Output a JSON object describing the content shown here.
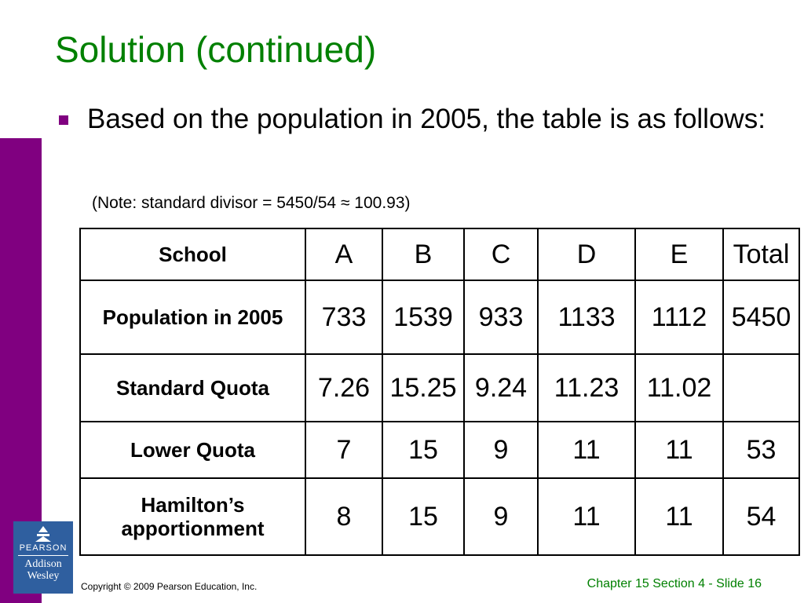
{
  "colors": {
    "title": "#008000",
    "accent": "#800080",
    "logo": "#2f5f9f"
  },
  "title": "Solution (continued)",
  "bullet": "Based on the population in 2005, the table is as follows:",
  "note": "(Note: standard divisor = 5450/54 ≈ 100.93)",
  "table": {
    "header": [
      "School",
      "A",
      "B",
      "C",
      "D",
      "E",
      "Total"
    ],
    "rows": [
      {
        "label": "Population in 2005",
        "cells": [
          "733",
          "1539",
          "933",
          "1133",
          "1112",
          "5450"
        ]
      },
      {
        "label": "Standard Quota",
        "cells": [
          "7.26",
          "15.25",
          "9.24",
          "11.23",
          "11.02",
          ""
        ]
      },
      {
        "label": "Lower Quota",
        "cells": [
          "7",
          "15",
          "9",
          "11",
          "11",
          "53"
        ]
      },
      {
        "label": "Hamilton’s apportionment",
        "cells": [
          "8",
          "15",
          "9",
          "11",
          "11",
          "54"
        ]
      }
    ]
  },
  "logo": {
    "top": "PEARSON",
    "line1": "Addison",
    "line2": "Wesley"
  },
  "footer": {
    "copyright": "Copyright © 2009 Pearson Education, Inc.",
    "slide": "Chapter 15 Section 4 - Slide 16"
  }
}
